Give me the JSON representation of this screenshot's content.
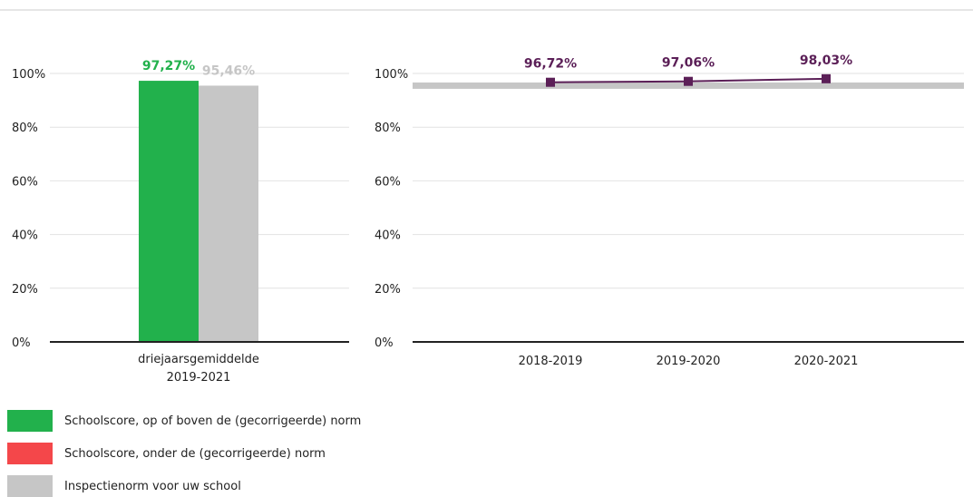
{
  "left_chart": {
    "categories": [
      [
        "driejaarsgemiddelde",
        "2019-2021"
      ]
    ]
  },
  "right_chart": {
    "categories": [
      "2018-2019",
      "2019-2020",
      "2020-2021"
    ]
  },
  "legend": [
    {
      "label": "Schoolscore, op of boven de (gecorrigeerde) norm",
      "color": "#22b14c"
    },
    {
      "label": "Schoolscore, onder de (gecorrigeerde) norm",
      "color": "#f4474a"
    },
    {
      "label": "Inspectienorm voor uw school",
      "color": "#c6c6c6"
    }
  ],
  "colors": {
    "above_norm": "#22b14c",
    "below_norm": "#f4474a",
    "norm": "#c6c6c6",
    "line": "#5b1f57",
    "grid": "#e2e2e2",
    "axis": "#222222"
  },
  "chart_data": [
    {
      "type": "bar",
      "categories": [
        "driejaarsgemiddelde 2019-2021"
      ],
      "series": [
        {
          "values": [
            97.27
          ],
          "data_labels": [
            "97,27%"
          ],
          "color": "#22b14c"
        },
        {
          "values": [
            95.46
          ],
          "data_labels": [
            "95,46%"
          ],
          "color": "#c6c6c6"
        }
      ],
      "yticks": [
        "0%",
        "20%",
        "40%",
        "60%",
        "80%",
        "100%"
      ],
      "ylim": [
        0,
        100
      ],
      "grid": true
    },
    {
      "type": "line",
      "categories": [
        "2018-2019",
        "2019-2020",
        "2020-2021"
      ],
      "series": [
        {
          "values": [
            96.72,
            97.06,
            98.03
          ],
          "data_labels": [
            "96,72%",
            "97,06%",
            "98,03%"
          ],
          "color": "#5b1f57"
        }
      ],
      "norm_band": {
        "value": 95.46,
        "color": "#c6c6c6"
      },
      "yticks": [
        "0%",
        "20%",
        "40%",
        "60%",
        "80%",
        "100%"
      ],
      "ylim": [
        0,
        100
      ],
      "grid": true
    }
  ]
}
